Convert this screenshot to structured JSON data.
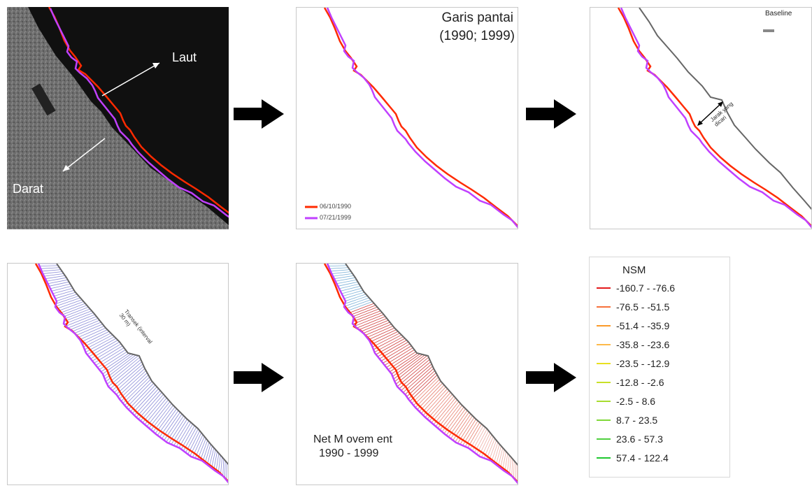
{
  "panel1": {
    "label_sea": "Laut",
    "label_land": "Darat"
  },
  "panel2": {
    "title_line1": "Garis pantai",
    "title_line2": "(1990; 1999)",
    "legend": [
      {
        "label": "06/10/1990",
        "color": "#ff2a00"
      },
      {
        "label": "07/21/1999",
        "color": "#c040ff"
      }
    ]
  },
  "panel3": {
    "baseline_label": "Baseline",
    "distance_label": "Jarak yang dicari"
  },
  "panel4": {
    "transect_label": "Transek (interval 30 m)"
  },
  "panel5": {
    "caption_line1": "Net M ovem ent",
    "caption_line2": "1990 - 1999"
  },
  "legend": {
    "title": "NSM",
    "classes": [
      {
        "label": "-160.7 - -76.6",
        "color": "#e31a1c"
      },
      {
        "label": "-76.5 - -51.5",
        "color": "#f7713b"
      },
      {
        "label": "-51.4 - -35.9",
        "color": "#fb9a29"
      },
      {
        "label": "-35.8 - -23.6",
        "color": "#fdb94a"
      },
      {
        "label": "-23.5 - -12.9",
        "color": "#e8e020"
      },
      {
        "label": "-12.8 - -2.6",
        "color": "#c8e028"
      },
      {
        "label": "-2.5 - 8.6",
        "color": "#a8dc30"
      },
      {
        "label": "8.7 - 23.5",
        "color": "#80d838"
      },
      {
        "label": "23.6 - 57.3",
        "color": "#50d040"
      },
      {
        "label": "57.4 - 122.4",
        "color": "#20c830"
      }
    ]
  },
  "colors": {
    "line_1990": "#ff2a00",
    "line_1999": "#c040ff",
    "baseline": "#666666",
    "transect": "#8c8cd8"
  }
}
